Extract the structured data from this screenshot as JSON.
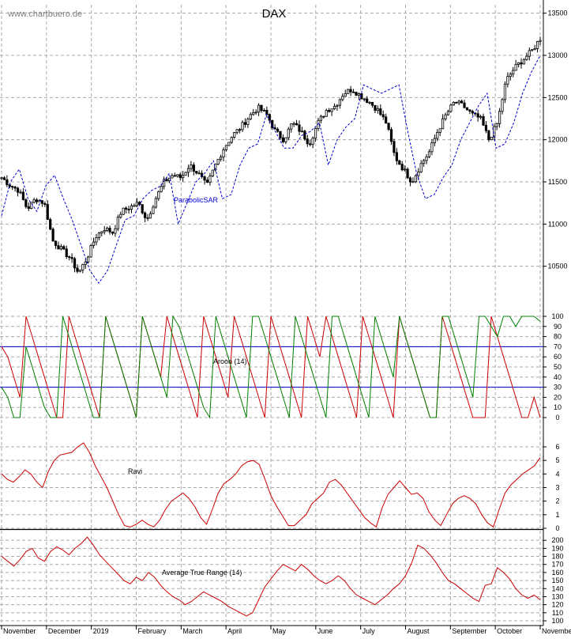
{
  "page": {
    "watermark": "www.chartbuero.de",
    "title": "DAX"
  },
  "x_axis": {
    "month_labels": [
      "November",
      "December",
      "2019",
      "February",
      "March",
      "April",
      "May",
      "June",
      "July",
      "August",
      "September",
      "October",
      "November"
    ]
  },
  "colors": {
    "price": "#000000",
    "sar": "#0000cc",
    "aroon_up": "#008000",
    "aroon_down": "#cc0000",
    "aroon_ref": "#0000cc",
    "indicator": "#cc0000",
    "grid": "#a8a8a8"
  },
  "chart_data": [
    {
      "type": "candlestick",
      "title": "DAX",
      "overlay_label": "ParabolicSAR",
      "ylim": [
        10000,
        13600
      ],
      "yticks": [
        10500,
        11000,
        11500,
        12000,
        12500,
        13000,
        13500
      ],
      "grid": true,
      "x": [
        "Nov 2018",
        "Dec 2018",
        "Jan 2019",
        "Feb 2019",
        "Mar 2019",
        "Apr 2019",
        "May 2019",
        "Jun 2019",
        "Jul 2019",
        "Aug 2019",
        "Sep 2019",
        "Oct 2019",
        "Nov 2019"
      ],
      "close_path": [
        11550,
        11460,
        11400,
        11180,
        11300,
        11250,
        10800,
        10700,
        10600,
        10420,
        10600,
        10850,
        10950,
        10900,
        11150,
        11200,
        11250,
        11050,
        11300,
        11500,
        11580,
        11550,
        11700,
        11600,
        11450,
        11700,
        11900,
        12050,
        12150,
        12280,
        12380,
        12300,
        12100,
        12000,
        12200,
        12100,
        11950,
        12200,
        12350,
        12400,
        12550,
        12600,
        12520,
        12450,
        12350,
        12200,
        11800,
        11650,
        11500,
        11700,
        11850,
        12100,
        12300,
        12450,
        12400,
        12300,
        12250,
        12000,
        12200,
        12700,
        12850,
        12950,
        13050,
        13200
      ],
      "sar_label_position": "below price, March",
      "sar_path": [
        11100,
        11500,
        11650,
        11300,
        11150,
        11450,
        11580,
        11300,
        11050,
        10750,
        10450,
        10300,
        10450,
        10750,
        11050,
        11100,
        11300,
        11400,
        11450,
        11600,
        11000,
        11250,
        11500,
        11600,
        11750,
        11300,
        11350,
        11700,
        11900,
        11950,
        12300,
        12100,
        11900,
        11900,
        12050,
        12100,
        12200,
        11700,
        12000,
        12150,
        12250,
        12650,
        12600,
        12550,
        12600,
        12650,
        12100,
        11600,
        11300,
        11350,
        11550,
        11700,
        12000,
        12200,
        12400,
        12550,
        11900,
        11950,
        12200,
        12550,
        12800,
        13000
      ]
    },
    {
      "type": "line",
      "title": "Aroon (14)",
      "ylim": [
        0,
        100
      ],
      "yticks": [
        0,
        10,
        20,
        30,
        40,
        50,
        60,
        70,
        80,
        90,
        100
      ],
      "reference_lines": [
        70,
        30
      ],
      "series": [
        {
          "values": [
            70,
            60,
            40,
            20,
            100,
            80,
            60,
            40,
            20,
            0,
            0,
            100,
            80,
            60,
            40,
            20,
            0,
            100,
            80,
            60,
            40,
            20,
            0,
            100,
            80,
            60,
            40,
            100,
            80,
            60,
            40,
            20,
            0,
            100,
            80,
            60,
            40,
            20,
            100,
            80,
            60,
            40,
            20,
            0,
            100,
            80,
            60,
            40,
            20,
            0,
            100,
            80,
            60,
            100,
            80,
            60,
            40,
            20,
            0,
            100,
            80,
            60,
            40,
            20,
            0,
            100,
            80,
            60,
            40,
            20,
            0,
            0,
            100,
            80,
            60,
            40,
            20,
            0,
            0,
            0,
            100,
            80,
            60,
            40,
            20,
            0,
            0,
            20,
            0
          ]
        },
        {
          "values": [
            30,
            20,
            0,
            0,
            70,
            50,
            30,
            10,
            0,
            0,
            100,
            80,
            60,
            40,
            20,
            0,
            0,
            100,
            80,
            60,
            40,
            20,
            0,
            100,
            80,
            60,
            40,
            20,
            100,
            90,
            70,
            50,
            30,
            10,
            0,
            100,
            80,
            60,
            40,
            20,
            0,
            100,
            100,
            80,
            60,
            40,
            20,
            0,
            100,
            80,
            60,
            40,
            20,
            0,
            100,
            100,
            80,
            60,
            40,
            20,
            0,
            100,
            80,
            60,
            40,
            100,
            80,
            60,
            40,
            20,
            0,
            0,
            100,
            100,
            80,
            60,
            40,
            20,
            100,
            100,
            90,
            80,
            100,
            100,
            90,
            100,
            100,
            100,
            95
          ]
        }
      ]
    },
    {
      "type": "line",
      "title": "Ravi",
      "ylim": [
        0,
        6
      ],
      "yticks": [
        0,
        1,
        2,
        3,
        4,
        5,
        6
      ],
      "series": [
        {
          "values": [
            4.0,
            3.6,
            3.4,
            3.8,
            4.3,
            4.0,
            3.4,
            3.0,
            4.2,
            5.0,
            5.4,
            5.5,
            5.6,
            6.0,
            6.3,
            5.6,
            4.6,
            3.8,
            3.0,
            2.0,
            1.0,
            0.2,
            0.1,
            0.3,
            0.6,
            0.3,
            0.1,
            0.6,
            1.4,
            2.0,
            2.3,
            2.6,
            2.2,
            1.6,
            0.8,
            0.3,
            1.4,
            2.6,
            3.3,
            3.6,
            4.0,
            4.6,
            4.9,
            5.0,
            4.7,
            3.6,
            2.4,
            1.6,
            0.9,
            0.2,
            0.2,
            0.6,
            1.0,
            1.8,
            2.2,
            2.6,
            3.4,
            3.6,
            3.2,
            2.6,
            2.0,
            1.4,
            0.8,
            0.4,
            0.1,
            1.5,
            2.5,
            3.0,
            3.5,
            3.0,
            2.5,
            2.6,
            2.2,
            1.2,
            0.6,
            0.2,
            1.0,
            1.8,
            2.2,
            2.4,
            2.2,
            1.8,
            1.0,
            0.4,
            0.1,
            1.4,
            2.6,
            3.2,
            3.6,
            4.0,
            4.3,
            4.6,
            5.2
          ]
        }
      ]
    },
    {
      "type": "line",
      "title": "Average True Range (14)",
      "ylim": [
        100,
        210
      ],
      "yticks": [
        100,
        110,
        120,
        130,
        140,
        150,
        160,
        170,
        180,
        190,
        200
      ],
      "series": [
        {
          "values": [
            180,
            174,
            168,
            176,
            186,
            190,
            178,
            174,
            186,
            192,
            188,
            182,
            190,
            196,
            204,
            194,
            182,
            174,
            166,
            158,
            150,
            146,
            154,
            150,
            160,
            154,
            144,
            136,
            130,
            126,
            120,
            124,
            130,
            136,
            132,
            128,
            124,
            118,
            114,
            110,
            106,
            110,
            126,
            142,
            152,
            162,
            170,
            166,
            162,
            170,
            164,
            156,
            150,
            146,
            150,
            156,
            150,
            140,
            132,
            128,
            124,
            120,
            126,
            132,
            140,
            146,
            156,
            172,
            194,
            190,
            182,
            172,
            160,
            150,
            146,
            140,
            134,
            128,
            124,
            144,
            146,
            166,
            160,
            152,
            140,
            132,
            128,
            132,
            126
          ]
        }
      ]
    }
  ]
}
